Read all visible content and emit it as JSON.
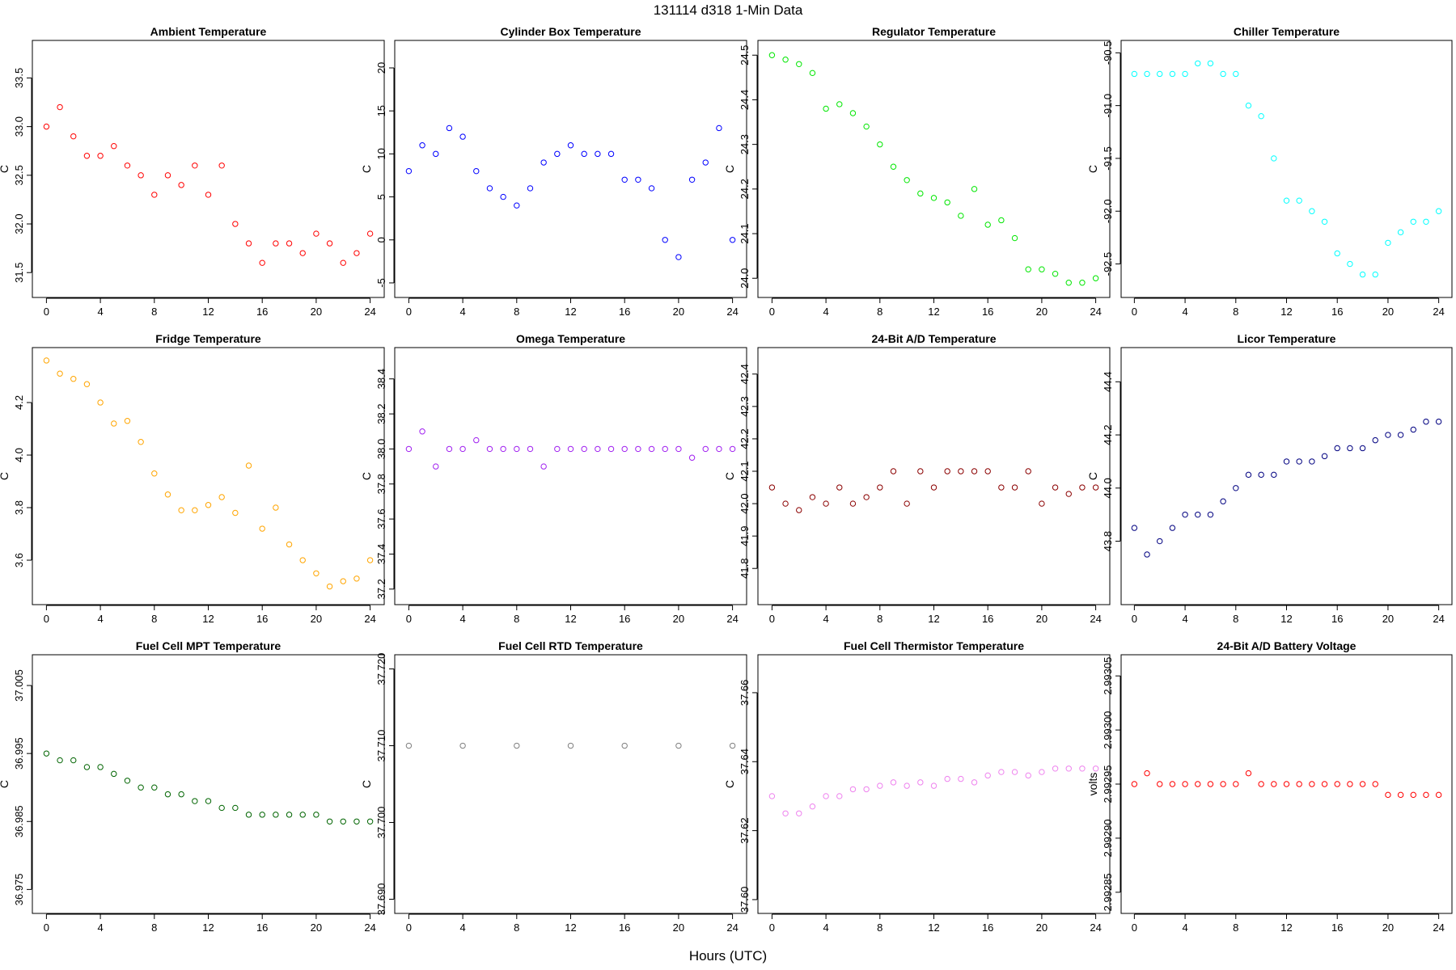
{
  "figure": {
    "title": "131114   d318   1-Min Data",
    "xlabel": "Hours (UTC)"
  },
  "chart_data": [
    {
      "type": "scatter",
      "title": "Ambient Temperature",
      "ylabel": "C",
      "color": "#ff0000",
      "xlim": [
        0,
        24
      ],
      "xticks": [
        0,
        4,
        8,
        12,
        16,
        20,
        24
      ],
      "xtick_labels": [
        "0",
        "4",
        "8",
        "12",
        "16",
        "20",
        "24"
      ],
      "ylim": [
        31.35,
        33.78
      ],
      "yticks": [
        31.5,
        32.0,
        32.5,
        33.0,
        33.5
      ],
      "ytick_labels": [
        "31.5",
        "32.0",
        "32.5",
        "33.0",
        "33.5"
      ],
      "x": [
        0,
        1,
        2,
        3,
        4,
        5,
        6,
        7,
        8,
        9,
        10,
        11,
        12,
        13,
        14,
        15,
        16,
        17,
        18,
        19,
        20,
        21,
        22,
        23,
        24
      ],
      "y": [
        33.0,
        33.2,
        32.9,
        32.7,
        32.7,
        32.8,
        32.6,
        32.5,
        32.3,
        32.5,
        32.4,
        32.6,
        32.3,
        32.6,
        32.0,
        31.8,
        31.6,
        31.8,
        31.8,
        31.7,
        31.9,
        31.8,
        31.6,
        31.7,
        31.9
      ]
    },
    {
      "type": "scatter",
      "title": "Cylinder Box Temperature",
      "ylabel": "C",
      "color": "#0000ff",
      "xlim": [
        0,
        24
      ],
      "xticks": [
        0,
        4,
        8,
        12,
        16,
        20,
        24
      ],
      "xtick_labels": [
        "0",
        "4",
        "8",
        "12",
        "16",
        "20",
        "24"
      ],
      "ylim": [
        -5.5,
        22
      ],
      "yticks": [
        -5,
        0,
        5,
        10,
        15,
        20
      ],
      "ytick_labels": [
        "-5",
        "0",
        "5",
        "10",
        "15",
        "20"
      ],
      "x": [
        0,
        1,
        2,
        3,
        4,
        5,
        6,
        7,
        8,
        9,
        10,
        11,
        12,
        13,
        14,
        15,
        16,
        17,
        18,
        19,
        20,
        21,
        22,
        23,
        24
      ],
      "y": [
        8,
        11,
        10,
        13,
        12,
        8,
        6,
        5,
        4,
        6,
        9,
        10,
        11,
        10,
        10,
        10,
        7,
        7,
        6,
        0,
        -2,
        7,
        9,
        13,
        0
      ]
    },
    {
      "type": "scatter",
      "title": "Regulator Temperature",
      "ylabel": "C",
      "color": "#00e600",
      "xlim": [
        0,
        24
      ],
      "xticks": [
        0,
        4,
        8,
        12,
        16,
        20,
        24
      ],
      "xtick_labels": [
        "0",
        "4",
        "8",
        "12",
        "16",
        "20",
        "24"
      ],
      "ylim": [
        23.98,
        24.51
      ],
      "yticks": [
        24.0,
        24.1,
        24.2,
        24.3,
        24.4,
        24.5
      ],
      "ytick_labels": [
        "24.0",
        "24.1",
        "24.2",
        "24.3",
        "24.4",
        "24.5"
      ],
      "x": [
        0,
        1,
        2,
        3,
        4,
        5,
        6,
        7,
        8,
        9,
        10,
        11,
        12,
        13,
        14,
        15,
        16,
        17,
        18,
        19,
        20,
        21,
        22,
        23,
        24
      ],
      "y": [
        24.5,
        24.49,
        24.48,
        24.46,
        24.38,
        24.39,
        24.37,
        24.34,
        24.3,
        24.25,
        24.22,
        24.19,
        24.18,
        24.17,
        24.14,
        24.2,
        24.12,
        24.13,
        24.09,
        24.02,
        24.02,
        24.01,
        23.99,
        23.99,
        24.0
      ]
    },
    {
      "type": "scatter",
      "title": "Chiller Temperature",
      "ylabel": "C",
      "color": "#00ffff",
      "xlim": [
        0,
        24
      ],
      "xticks": [
        0,
        4,
        8,
        12,
        16,
        20,
        24
      ],
      "xtick_labels": [
        "0",
        "4",
        "8",
        "12",
        "16",
        "20",
        "24"
      ],
      "ylim": [
        -92.72,
        -90.48
      ],
      "yticks": [
        -92.5,
        -92.0,
        -91.5,
        -91.0,
        -90.5
      ],
      "ytick_labels": [
        "-92.5",
        "-92.0",
        "-91.5",
        "-91.0",
        "-90.5"
      ],
      "x": [
        0,
        1,
        2,
        3,
        4,
        5,
        6,
        7,
        8,
        9,
        10,
        11,
        12,
        13,
        14,
        15,
        16,
        17,
        18,
        19,
        20,
        21,
        22,
        23,
        24
      ],
      "y": [
        -90.7,
        -90.7,
        -90.7,
        -90.7,
        -90.7,
        -90.6,
        -90.6,
        -90.7,
        -90.7,
        -91.0,
        -91.1,
        -91.5,
        -91.9,
        -91.9,
        -92.0,
        -92.1,
        -92.4,
        -92.5,
        -92.6,
        -92.6,
        -92.3,
        -92.2,
        -92.1,
        -92.1,
        -92.0
      ]
    },
    {
      "type": "scatter",
      "title": "Fridge Temperature",
      "ylabel": "C",
      "color": "#ffa500",
      "xlim": [
        0,
        24
      ],
      "xticks": [
        0,
        4,
        8,
        12,
        16,
        20,
        24
      ],
      "xtick_labels": [
        "0",
        "4",
        "8",
        "12",
        "16",
        "20",
        "24"
      ],
      "ylim": [
        3.47,
        4.37
      ],
      "yticks": [
        3.6,
        3.8,
        4.0,
        4.2
      ],
      "ytick_labels": [
        "3.6",
        "3.8",
        "4.0",
        "4.2"
      ],
      "x": [
        0,
        1,
        2,
        3,
        4,
        5,
        6,
        7,
        8,
        9,
        10,
        11,
        12,
        13,
        14,
        15,
        16,
        17,
        18,
        19,
        20,
        21,
        22,
        23,
        24
      ],
      "y": [
        4.36,
        4.31,
        4.29,
        4.27,
        4.2,
        4.12,
        4.13,
        4.05,
        3.93,
        3.85,
        3.79,
        3.79,
        3.81,
        3.84,
        3.78,
        3.96,
        3.72,
        3.8,
        3.66,
        3.6,
        3.55,
        3.5,
        3.52,
        3.53,
        3.6
      ]
    },
    {
      "type": "scatter",
      "title": "Omega Temperature",
      "ylabel": "C",
      "color": "#a020f0",
      "xlim": [
        0,
        24
      ],
      "xticks": [
        0,
        4,
        8,
        12,
        16,
        20,
        24
      ],
      "xtick_labels": [
        "0",
        "4",
        "8",
        "12",
        "16",
        "20",
        "24"
      ],
      "ylim": [
        37.17,
        38.52
      ],
      "yticks": [
        37.2,
        37.4,
        37.6,
        37.8,
        38.0,
        38.2,
        38.4
      ],
      "ytick_labels": [
        "37.2",
        "37.4",
        "37.6",
        "37.8",
        "38.0",
        "38.2",
        "38.4"
      ],
      "x": [
        0,
        1,
        2,
        3,
        4,
        5,
        6,
        7,
        8,
        9,
        10,
        11,
        12,
        13,
        14,
        15,
        16,
        17,
        18,
        19,
        20,
        21,
        22,
        23,
        24
      ],
      "y": [
        38.0,
        38.1,
        37.9,
        38.0,
        38.0,
        38.05,
        38.0,
        38.0,
        38.0,
        38.0,
        37.9,
        38.0,
        38.0,
        38.0,
        38.0,
        38.0,
        38.0,
        38.0,
        38.0,
        38.0,
        38.0,
        37.95,
        38.0,
        38.0,
        38.0
      ]
    },
    {
      "type": "scatter",
      "title": "24-Bit A/D Temperature",
      "ylabel": "C",
      "color": "#8b0000",
      "xlim": [
        0,
        24
      ],
      "xticks": [
        0,
        4,
        8,
        12,
        16,
        20,
        24
      ],
      "xtick_labels": [
        "0",
        "4",
        "8",
        "12",
        "16",
        "20",
        "24"
      ],
      "ylim": [
        41.72,
        42.45
      ],
      "yticks": [
        41.8,
        41.9,
        42.0,
        42.1,
        42.2,
        42.3,
        42.4
      ],
      "ytick_labels": [
        "41.8",
        "41.9",
        "42.0",
        "42.1",
        "42.2",
        "42.3",
        "42.4"
      ],
      "x": [
        0,
        1,
        2,
        3,
        4,
        5,
        6,
        7,
        8,
        9,
        10,
        11,
        12,
        13,
        14,
        15,
        16,
        17,
        18,
        19,
        20,
        21,
        22,
        23,
        24
      ],
      "y": [
        42.05,
        42.0,
        41.98,
        42.02,
        42.0,
        42.05,
        42.0,
        42.02,
        42.05,
        42.1,
        42.0,
        42.1,
        42.05,
        42.1,
        42.1,
        42.1,
        42.1,
        42.05,
        42.05,
        42.1,
        42.0,
        42.05,
        42.03,
        42.05,
        42.05
      ]
    },
    {
      "type": "scatter",
      "title": "Licor Temperature",
      "ylabel": "C",
      "color": "#000080",
      "xlim": [
        0,
        24
      ],
      "xticks": [
        0,
        4,
        8,
        12,
        16,
        20,
        24
      ],
      "xtick_labels": [
        "0",
        "4",
        "8",
        "12",
        "16",
        "20",
        "24"
      ],
      "ylim": [
        43.6,
        44.49
      ],
      "yticks": [
        43.8,
        44.0,
        44.2,
        44.4
      ],
      "ytick_labels": [
        "43.8",
        "44.0",
        "44.2",
        "44.4"
      ],
      "x": [
        0,
        1,
        2,
        3,
        4,
        5,
        6,
        7,
        8,
        9,
        10,
        11,
        12,
        13,
        14,
        15,
        16,
        17,
        18,
        19,
        20,
        21,
        22,
        23,
        24
      ],
      "y": [
        43.85,
        43.75,
        43.8,
        43.85,
        43.9,
        43.9,
        43.9,
        43.95,
        44.0,
        44.05,
        44.05,
        44.05,
        44.1,
        44.1,
        44.1,
        44.12,
        44.15,
        44.15,
        44.15,
        44.18,
        44.2,
        44.2,
        44.22,
        44.25,
        44.25
      ]
    },
    {
      "type": "scatter",
      "title": "Fuel Cell MPT Temperature",
      "ylabel": "C",
      "color": "#006400",
      "xlim": [
        0,
        24
      ],
      "xticks": [
        0,
        4,
        8,
        12,
        16,
        20,
        24
      ],
      "xtick_labels": [
        "0",
        "4",
        "8",
        "12",
        "16",
        "20",
        "24"
      ],
      "ylim": [
        36.973,
        37.008
      ],
      "yticks": [
        36.975,
        36.985,
        36.995,
        37.005
      ],
      "ytick_labels": [
        "36.975",
        "36.985",
        "36.995",
        "37.005"
      ],
      "x": [
        0,
        1,
        2,
        3,
        4,
        5,
        6,
        7,
        8,
        9,
        10,
        11,
        12,
        13,
        14,
        15,
        16,
        17,
        18,
        19,
        20,
        21,
        22,
        23,
        24
      ],
      "y": [
        36.995,
        36.994,
        36.994,
        36.993,
        36.993,
        36.992,
        36.991,
        36.99,
        36.99,
        36.989,
        36.989,
        36.988,
        36.988,
        36.987,
        36.987,
        36.986,
        36.986,
        36.986,
        36.986,
        36.986,
        36.986,
        36.985,
        36.985,
        36.985,
        36.985
      ]
    },
    {
      "type": "scatter",
      "title": "Fuel Cell RTD Temperature",
      "ylabel": "C",
      "color": "#808080",
      "xlim": [
        0,
        24
      ],
      "xticks": [
        0,
        4,
        8,
        12,
        16,
        20,
        24
      ],
      "xtick_labels": [
        "0",
        "4",
        "8",
        "12",
        "16",
        "20",
        "24"
      ],
      "ylim": [
        37.6895,
        37.7205
      ],
      "yticks": [
        37.69,
        37.7,
        37.71,
        37.72
      ],
      "ytick_labels": [
        "37.690",
        "37.700",
        "37.710",
        "37.720"
      ],
      "x": [
        0,
        4,
        8,
        12,
        16,
        20,
        24
      ],
      "y": [
        37.71,
        37.71,
        37.71,
        37.71,
        37.71,
        37.71,
        37.71
      ]
    },
    {
      "type": "scatter",
      "title": "Fuel Cell Thermistor Temperature",
      "ylabel": "C",
      "color": "#ee82ee",
      "xlim": [
        0,
        24
      ],
      "xticks": [
        0,
        4,
        8,
        12,
        16,
        20,
        24
      ],
      "xtick_labels": [
        "0",
        "4",
        "8",
        "12",
        "16",
        "20",
        "24"
      ],
      "ylim": [
        37.599,
        37.668
      ],
      "yticks": [
        37.6,
        37.62,
        37.64,
        37.66
      ],
      "ytick_labels": [
        "37.60",
        "37.62",
        "37.64",
        "37.66"
      ],
      "x": [
        0,
        1,
        2,
        3,
        4,
        5,
        6,
        7,
        8,
        9,
        10,
        11,
        12,
        13,
        14,
        15,
        16,
        17,
        18,
        19,
        20,
        21,
        22,
        23,
        24
      ],
      "y": [
        37.63,
        37.625,
        37.625,
        37.627,
        37.63,
        37.63,
        37.632,
        37.632,
        37.633,
        37.634,
        37.633,
        37.634,
        37.633,
        37.635,
        37.635,
        37.634,
        37.636,
        37.637,
        37.637,
        37.636,
        37.637,
        37.638,
        37.638,
        37.638,
        37.638
      ]
    },
    {
      "type": "scatter",
      "title": "24-Bit A/D Battery Voltage",
      "ylabel": "volts",
      "color": "#ff0000",
      "xlim": [
        0,
        24
      ],
      "xticks": [
        0,
        4,
        8,
        12,
        16,
        20,
        24
      ],
      "xtick_labels": [
        "0",
        "4",
        "8",
        "12",
        "16",
        "20",
        "24"
      ],
      "ylim": [
        2.99284,
        2.99306
      ],
      "yticks": [
        2.99285,
        2.9929,
        2.99295,
        2.993,
        2.99305
      ],
      "ytick_labels": [
        "2.99285",
        "2.99290",
        "2.99295",
        "2.99300",
        "2.99305"
      ],
      "x": [
        0,
        1,
        2,
        3,
        4,
        5,
        6,
        7,
        8,
        9,
        10,
        11,
        12,
        13,
        14,
        15,
        16,
        17,
        18,
        19,
        20,
        21,
        22,
        23,
        24
      ],
      "y": [
        2.99295,
        2.99296,
        2.99295,
        2.99295,
        2.99295,
        2.99295,
        2.99295,
        2.99295,
        2.99295,
        2.99296,
        2.99295,
        2.99295,
        2.99295,
        2.99295,
        2.99295,
        2.99295,
        2.99295,
        2.99295,
        2.99295,
        2.99295,
        2.99294,
        2.99294,
        2.99294,
        2.99294,
        2.99294
      ]
    }
  ]
}
